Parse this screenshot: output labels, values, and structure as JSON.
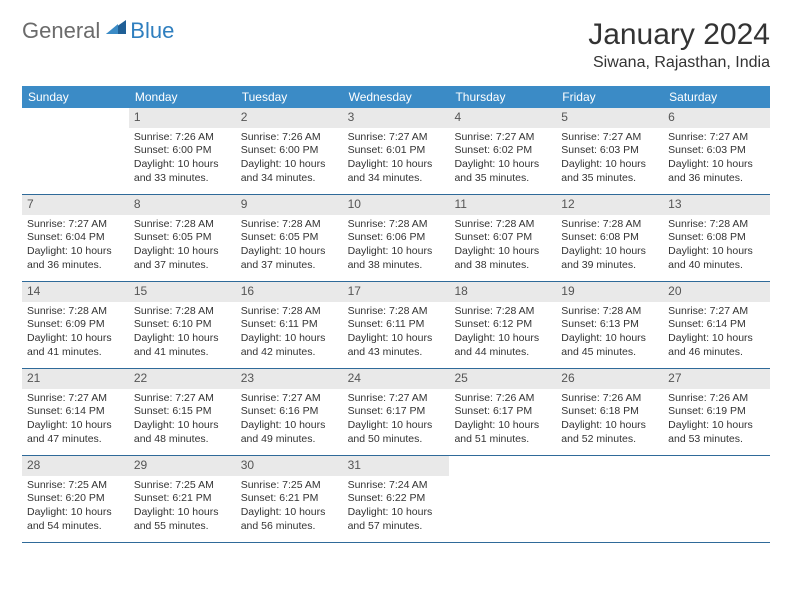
{
  "logo": {
    "text1": "General",
    "text2": "Blue"
  },
  "title": "January 2024",
  "location": "Siwana, Rajasthan, India",
  "colors": {
    "header_bg": "#3b8bc6",
    "header_text": "#ffffff",
    "daynum_bg": "#e9e9e9",
    "week_border": "#2f6a99",
    "logo_gray": "#6b6b6b",
    "logo_blue": "#2f7fbf"
  },
  "day_names": [
    "Sunday",
    "Monday",
    "Tuesday",
    "Wednesday",
    "Thursday",
    "Friday",
    "Saturday"
  ],
  "weeks": [
    [
      {
        "n": "",
        "sr": "",
        "ss": "",
        "dl": ""
      },
      {
        "n": "1",
        "sr": "Sunrise: 7:26 AM",
        "ss": "Sunset: 6:00 PM",
        "dl": "Daylight: 10 hours and 33 minutes."
      },
      {
        "n": "2",
        "sr": "Sunrise: 7:26 AM",
        "ss": "Sunset: 6:00 PM",
        "dl": "Daylight: 10 hours and 34 minutes."
      },
      {
        "n": "3",
        "sr": "Sunrise: 7:27 AM",
        "ss": "Sunset: 6:01 PM",
        "dl": "Daylight: 10 hours and 34 minutes."
      },
      {
        "n": "4",
        "sr": "Sunrise: 7:27 AM",
        "ss": "Sunset: 6:02 PM",
        "dl": "Daylight: 10 hours and 35 minutes."
      },
      {
        "n": "5",
        "sr": "Sunrise: 7:27 AM",
        "ss": "Sunset: 6:03 PM",
        "dl": "Daylight: 10 hours and 35 minutes."
      },
      {
        "n": "6",
        "sr": "Sunrise: 7:27 AM",
        "ss": "Sunset: 6:03 PM",
        "dl": "Daylight: 10 hours and 36 minutes."
      }
    ],
    [
      {
        "n": "7",
        "sr": "Sunrise: 7:27 AM",
        "ss": "Sunset: 6:04 PM",
        "dl": "Daylight: 10 hours and 36 minutes."
      },
      {
        "n": "8",
        "sr": "Sunrise: 7:28 AM",
        "ss": "Sunset: 6:05 PM",
        "dl": "Daylight: 10 hours and 37 minutes."
      },
      {
        "n": "9",
        "sr": "Sunrise: 7:28 AM",
        "ss": "Sunset: 6:05 PM",
        "dl": "Daylight: 10 hours and 37 minutes."
      },
      {
        "n": "10",
        "sr": "Sunrise: 7:28 AM",
        "ss": "Sunset: 6:06 PM",
        "dl": "Daylight: 10 hours and 38 minutes."
      },
      {
        "n": "11",
        "sr": "Sunrise: 7:28 AM",
        "ss": "Sunset: 6:07 PM",
        "dl": "Daylight: 10 hours and 38 minutes."
      },
      {
        "n": "12",
        "sr": "Sunrise: 7:28 AM",
        "ss": "Sunset: 6:08 PM",
        "dl": "Daylight: 10 hours and 39 minutes."
      },
      {
        "n": "13",
        "sr": "Sunrise: 7:28 AM",
        "ss": "Sunset: 6:08 PM",
        "dl": "Daylight: 10 hours and 40 minutes."
      }
    ],
    [
      {
        "n": "14",
        "sr": "Sunrise: 7:28 AM",
        "ss": "Sunset: 6:09 PM",
        "dl": "Daylight: 10 hours and 41 minutes."
      },
      {
        "n": "15",
        "sr": "Sunrise: 7:28 AM",
        "ss": "Sunset: 6:10 PM",
        "dl": "Daylight: 10 hours and 41 minutes."
      },
      {
        "n": "16",
        "sr": "Sunrise: 7:28 AM",
        "ss": "Sunset: 6:11 PM",
        "dl": "Daylight: 10 hours and 42 minutes."
      },
      {
        "n": "17",
        "sr": "Sunrise: 7:28 AM",
        "ss": "Sunset: 6:11 PM",
        "dl": "Daylight: 10 hours and 43 minutes."
      },
      {
        "n": "18",
        "sr": "Sunrise: 7:28 AM",
        "ss": "Sunset: 6:12 PM",
        "dl": "Daylight: 10 hours and 44 minutes."
      },
      {
        "n": "19",
        "sr": "Sunrise: 7:28 AM",
        "ss": "Sunset: 6:13 PM",
        "dl": "Daylight: 10 hours and 45 minutes."
      },
      {
        "n": "20",
        "sr": "Sunrise: 7:27 AM",
        "ss": "Sunset: 6:14 PM",
        "dl": "Daylight: 10 hours and 46 minutes."
      }
    ],
    [
      {
        "n": "21",
        "sr": "Sunrise: 7:27 AM",
        "ss": "Sunset: 6:14 PM",
        "dl": "Daylight: 10 hours and 47 minutes."
      },
      {
        "n": "22",
        "sr": "Sunrise: 7:27 AM",
        "ss": "Sunset: 6:15 PM",
        "dl": "Daylight: 10 hours and 48 minutes."
      },
      {
        "n": "23",
        "sr": "Sunrise: 7:27 AM",
        "ss": "Sunset: 6:16 PM",
        "dl": "Daylight: 10 hours and 49 minutes."
      },
      {
        "n": "24",
        "sr": "Sunrise: 7:27 AM",
        "ss": "Sunset: 6:17 PM",
        "dl": "Daylight: 10 hours and 50 minutes."
      },
      {
        "n": "25",
        "sr": "Sunrise: 7:26 AM",
        "ss": "Sunset: 6:17 PM",
        "dl": "Daylight: 10 hours and 51 minutes."
      },
      {
        "n": "26",
        "sr": "Sunrise: 7:26 AM",
        "ss": "Sunset: 6:18 PM",
        "dl": "Daylight: 10 hours and 52 minutes."
      },
      {
        "n": "27",
        "sr": "Sunrise: 7:26 AM",
        "ss": "Sunset: 6:19 PM",
        "dl": "Daylight: 10 hours and 53 minutes."
      }
    ],
    [
      {
        "n": "28",
        "sr": "Sunrise: 7:25 AM",
        "ss": "Sunset: 6:20 PM",
        "dl": "Daylight: 10 hours and 54 minutes."
      },
      {
        "n": "29",
        "sr": "Sunrise: 7:25 AM",
        "ss": "Sunset: 6:21 PM",
        "dl": "Daylight: 10 hours and 55 minutes."
      },
      {
        "n": "30",
        "sr": "Sunrise: 7:25 AM",
        "ss": "Sunset: 6:21 PM",
        "dl": "Daylight: 10 hours and 56 minutes."
      },
      {
        "n": "31",
        "sr": "Sunrise: 7:24 AM",
        "ss": "Sunset: 6:22 PM",
        "dl": "Daylight: 10 hours and 57 minutes."
      },
      {
        "n": "",
        "sr": "",
        "ss": "",
        "dl": ""
      },
      {
        "n": "",
        "sr": "",
        "ss": "",
        "dl": ""
      },
      {
        "n": "",
        "sr": "",
        "ss": "",
        "dl": ""
      }
    ]
  ]
}
